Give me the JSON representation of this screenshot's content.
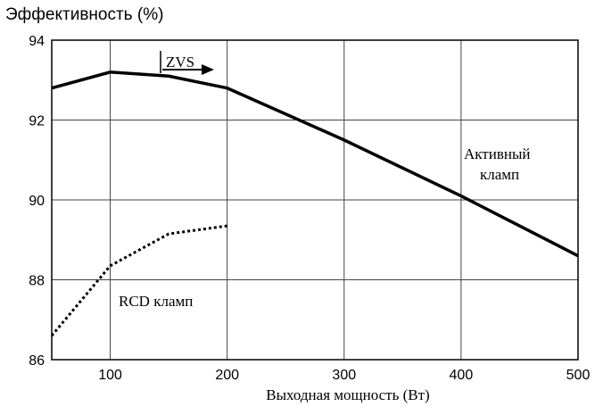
{
  "chart_data": {
    "type": "line",
    "title": "Эффективность (%)",
    "x_label": "Выходная мощность (Вт)",
    "annotations": [
      "ZVS",
      "Активный",
      "кламп",
      "RCD кламп"
    ],
    "xlim": [
      50,
      500
    ],
    "xticks": [
      100,
      200,
      300,
      400,
      500
    ],
    "ylim": [
      86,
      94
    ],
    "yticks": [
      86,
      88,
      90,
      92,
      94
    ],
    "grid": true,
    "series": [
      {
        "color": "#000000",
        "style": "solid",
        "x": [
          50,
          100,
          150,
          200,
          300,
          400,
          500
        ],
        "values": [
          92.8,
          93.2,
          93.1,
          92.8,
          91.5,
          90.1,
          88.6
        ]
      },
      {
        "color": "#000000",
        "style": "dotted",
        "x": [
          50,
          100,
          150,
          200
        ],
        "values": [
          86.6,
          88.35,
          89.15,
          89.35
        ]
      }
    ]
  }
}
